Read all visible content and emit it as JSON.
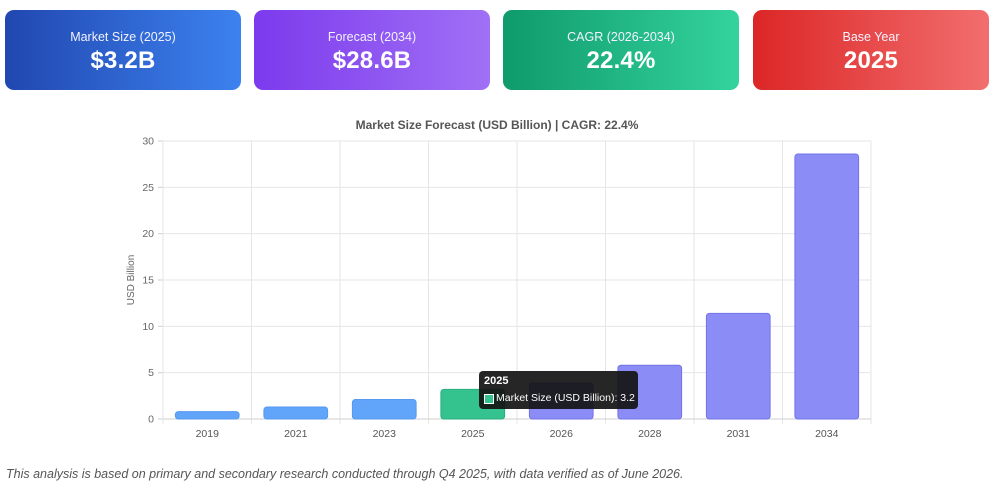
{
  "cards": [
    {
      "label": "Market Size (2025)",
      "value": "$3.2B"
    },
    {
      "label": "Forecast (2034)",
      "value": "$28.6B"
    },
    {
      "label": "CAGR (2026-2034)",
      "value": "22.4%"
    },
    {
      "label": "Base Year",
      "value": "2025"
    }
  ],
  "colors": {
    "historical": "#60a5fa",
    "base": "#34c28f",
    "forecast": "#8b8cf6"
  },
  "chart_data": {
    "type": "bar",
    "title": "Market Size Forecast (USD Billion) | CAGR: 22.4%",
    "xlabel": "",
    "ylabel": "USD Billion",
    "ylim": [
      0,
      30
    ],
    "yticks": [
      0,
      5,
      10,
      15,
      20,
      25,
      30
    ],
    "grid": true,
    "categories": [
      "2019",
      "2021",
      "2023",
      "2025",
      "2026",
      "2028",
      "2031",
      "2034"
    ],
    "series": [
      {
        "name": "Market Size (USD Billion)",
        "values": [
          0.8,
          1.3,
          2.1,
          3.2,
          3.9,
          5.8,
          11.4,
          28.6
        ]
      }
    ],
    "bar_kinds": [
      "historical",
      "historical",
      "historical",
      "base",
      "forecast",
      "forecast",
      "forecast",
      "forecast"
    ]
  },
  "tooltip": {
    "title": "2025",
    "text": "Market Size (USD Billion): 3.2"
  },
  "footnote": "This analysis is based on primary and secondary research conducted through Q4 2025, with data verified as of June 2026."
}
